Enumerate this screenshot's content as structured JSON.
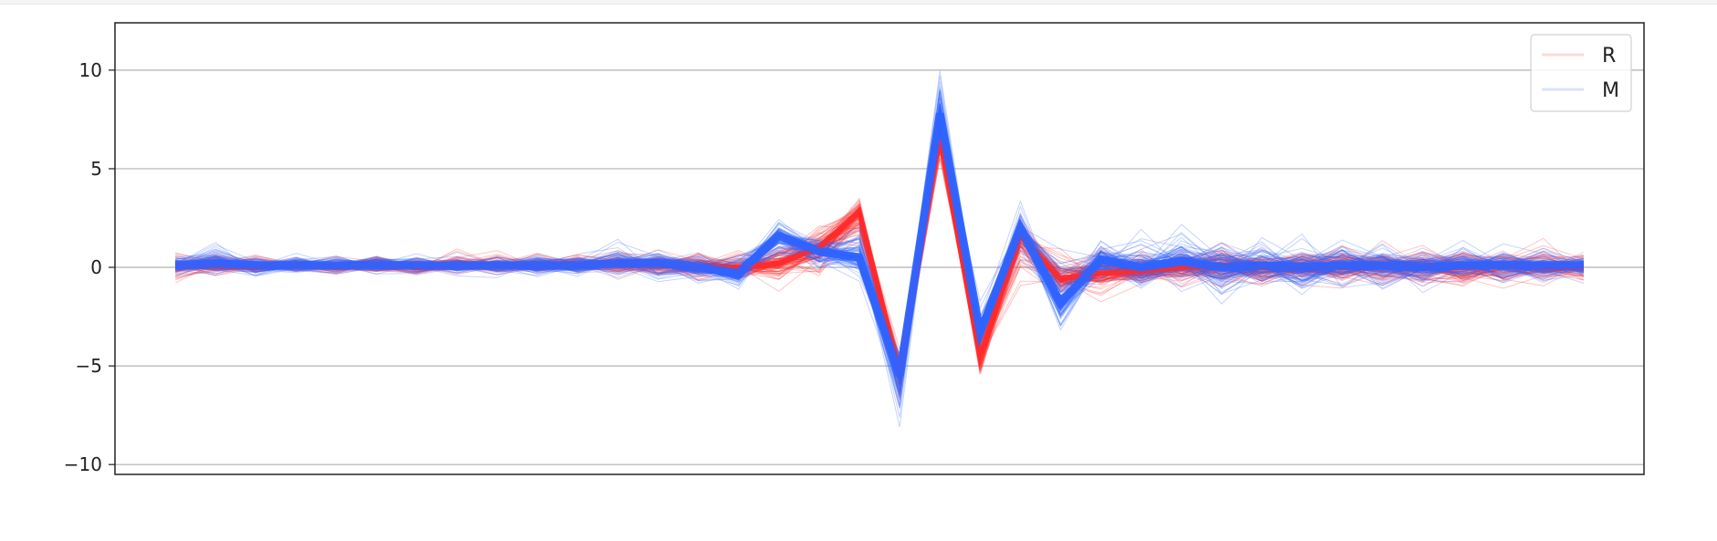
{
  "chart_data": {
    "type": "line",
    "title": "",
    "xlabel": "",
    "ylabel": "",
    "ylim": [
      -10.5,
      12.4
    ],
    "xlim": [
      -1.5,
      36.5
    ],
    "grid": "horizontal",
    "legend_position": "top-right",
    "y_ticks": [
      10,
      5,
      0,
      -5,
      -10
    ],
    "y_tick_labels": [
      "10",
      "5",
      "0",
      "−5",
      "−10"
    ],
    "x_ticks_visible": false,
    "n_points": 36,
    "series": [
      {
        "name": "R",
        "color": "#ff2a2a",
        "approx_lines_drawn": 120,
        "typical_profile": [
          0.1,
          0.1,
          0.0,
          0.1,
          0.0,
          0.1,
          0.0,
          0.1,
          0.1,
          0.1,
          0.1,
          0.2,
          0.1,
          0.0,
          0.0,
          0.2,
          1.0,
          2.8,
          -5.4,
          6.5,
          -4.5,
          1.6,
          -0.6,
          -0.3,
          -0.2,
          0.0,
          0.1,
          0.0,
          0.0,
          0.0,
          0.1,
          0.0,
          0.0,
          0.1,
          0.0,
          0.0
        ],
        "min_envelope": [
          -1.2,
          -0.8,
          -0.6,
          -0.5,
          -0.5,
          -0.6,
          -0.5,
          -0.6,
          -0.7,
          -0.8,
          -0.8,
          -0.9,
          -1.0,
          -1.2,
          -1.6,
          -1.8,
          -1.2,
          0.0,
          -7.5,
          4.5,
          -6.3,
          -1.5,
          -2.5,
          -2.2,
          -2.0,
          -1.7,
          -1.6,
          -1.7,
          -1.9,
          -2.1,
          -1.8,
          -1.9,
          -1.8,
          -1.8,
          -1.5,
          -1.2
        ],
        "max_envelope": [
          1.4,
          1.3,
          0.9,
          0.8,
          0.8,
          0.9,
          0.9,
          1.2,
          1.1,
          1.1,
          1.3,
          1.5,
          1.4,
          1.5,
          1.6,
          2.5,
          3.0,
          4.3,
          -3.0,
          8.5,
          -2.0,
          3.0,
          1.8,
          2.3,
          1.9,
          1.8,
          1.8,
          1.8,
          1.7,
          1.9,
          1.8,
          1.7,
          1.8,
          1.8,
          1.8,
          1.4
        ]
      },
      {
        "name": "M",
        "color": "#2f63ff",
        "approx_lines_drawn": 120,
        "typical_profile": [
          0.1,
          0.2,
          0.1,
          0.1,
          0.1,
          0.1,
          0.1,
          0.1,
          0.1,
          0.1,
          0.1,
          0.2,
          0.2,
          0.0,
          -0.3,
          1.6,
          0.8,
          0.5,
          -5.5,
          7.8,
          -3.3,
          2.0,
          -1.8,
          0.4,
          0.0,
          0.3,
          0.0,
          0.1,
          0.0,
          0.1,
          0.1,
          0.0,
          0.1,
          0.1,
          0.1,
          0.1
        ],
        "min_envelope": [
          -0.8,
          -1.2,
          -0.8,
          -0.6,
          -0.7,
          -0.8,
          -0.7,
          -0.7,
          -0.8,
          -0.9,
          -0.9,
          -1.1,
          -1.3,
          -1.4,
          -1.7,
          -1.0,
          -1.2,
          -1.2,
          -9.3,
          5.8,
          -5.0,
          -0.6,
          -4.4,
          -1.8,
          -2.1,
          -1.6,
          -2.5,
          -2.0,
          -2.4,
          -1.8,
          -2.0,
          -1.8,
          -1.8,
          -1.6,
          -1.4,
          -1.0
        ],
        "max_envelope": [
          1.0,
          2.2,
          1.1,
          1.0,
          1.0,
          1.1,
          1.1,
          1.0,
          1.0,
          1.2,
          1.3,
          1.7,
          1.8,
          1.4,
          1.5,
          2.8,
          2.4,
          4.0,
          -3.4,
          11.3,
          -1.2,
          3.8,
          3.3,
          2.4,
          2.7,
          3.4,
          2.2,
          2.6,
          2.7,
          2.2,
          2.0,
          1.9,
          1.9,
          1.8,
          1.6,
          1.1
        ]
      }
    ],
    "legend": [
      {
        "label": "R",
        "color": "#ff2a2a"
      },
      {
        "label": "M",
        "color": "#2f63ff"
      }
    ]
  }
}
